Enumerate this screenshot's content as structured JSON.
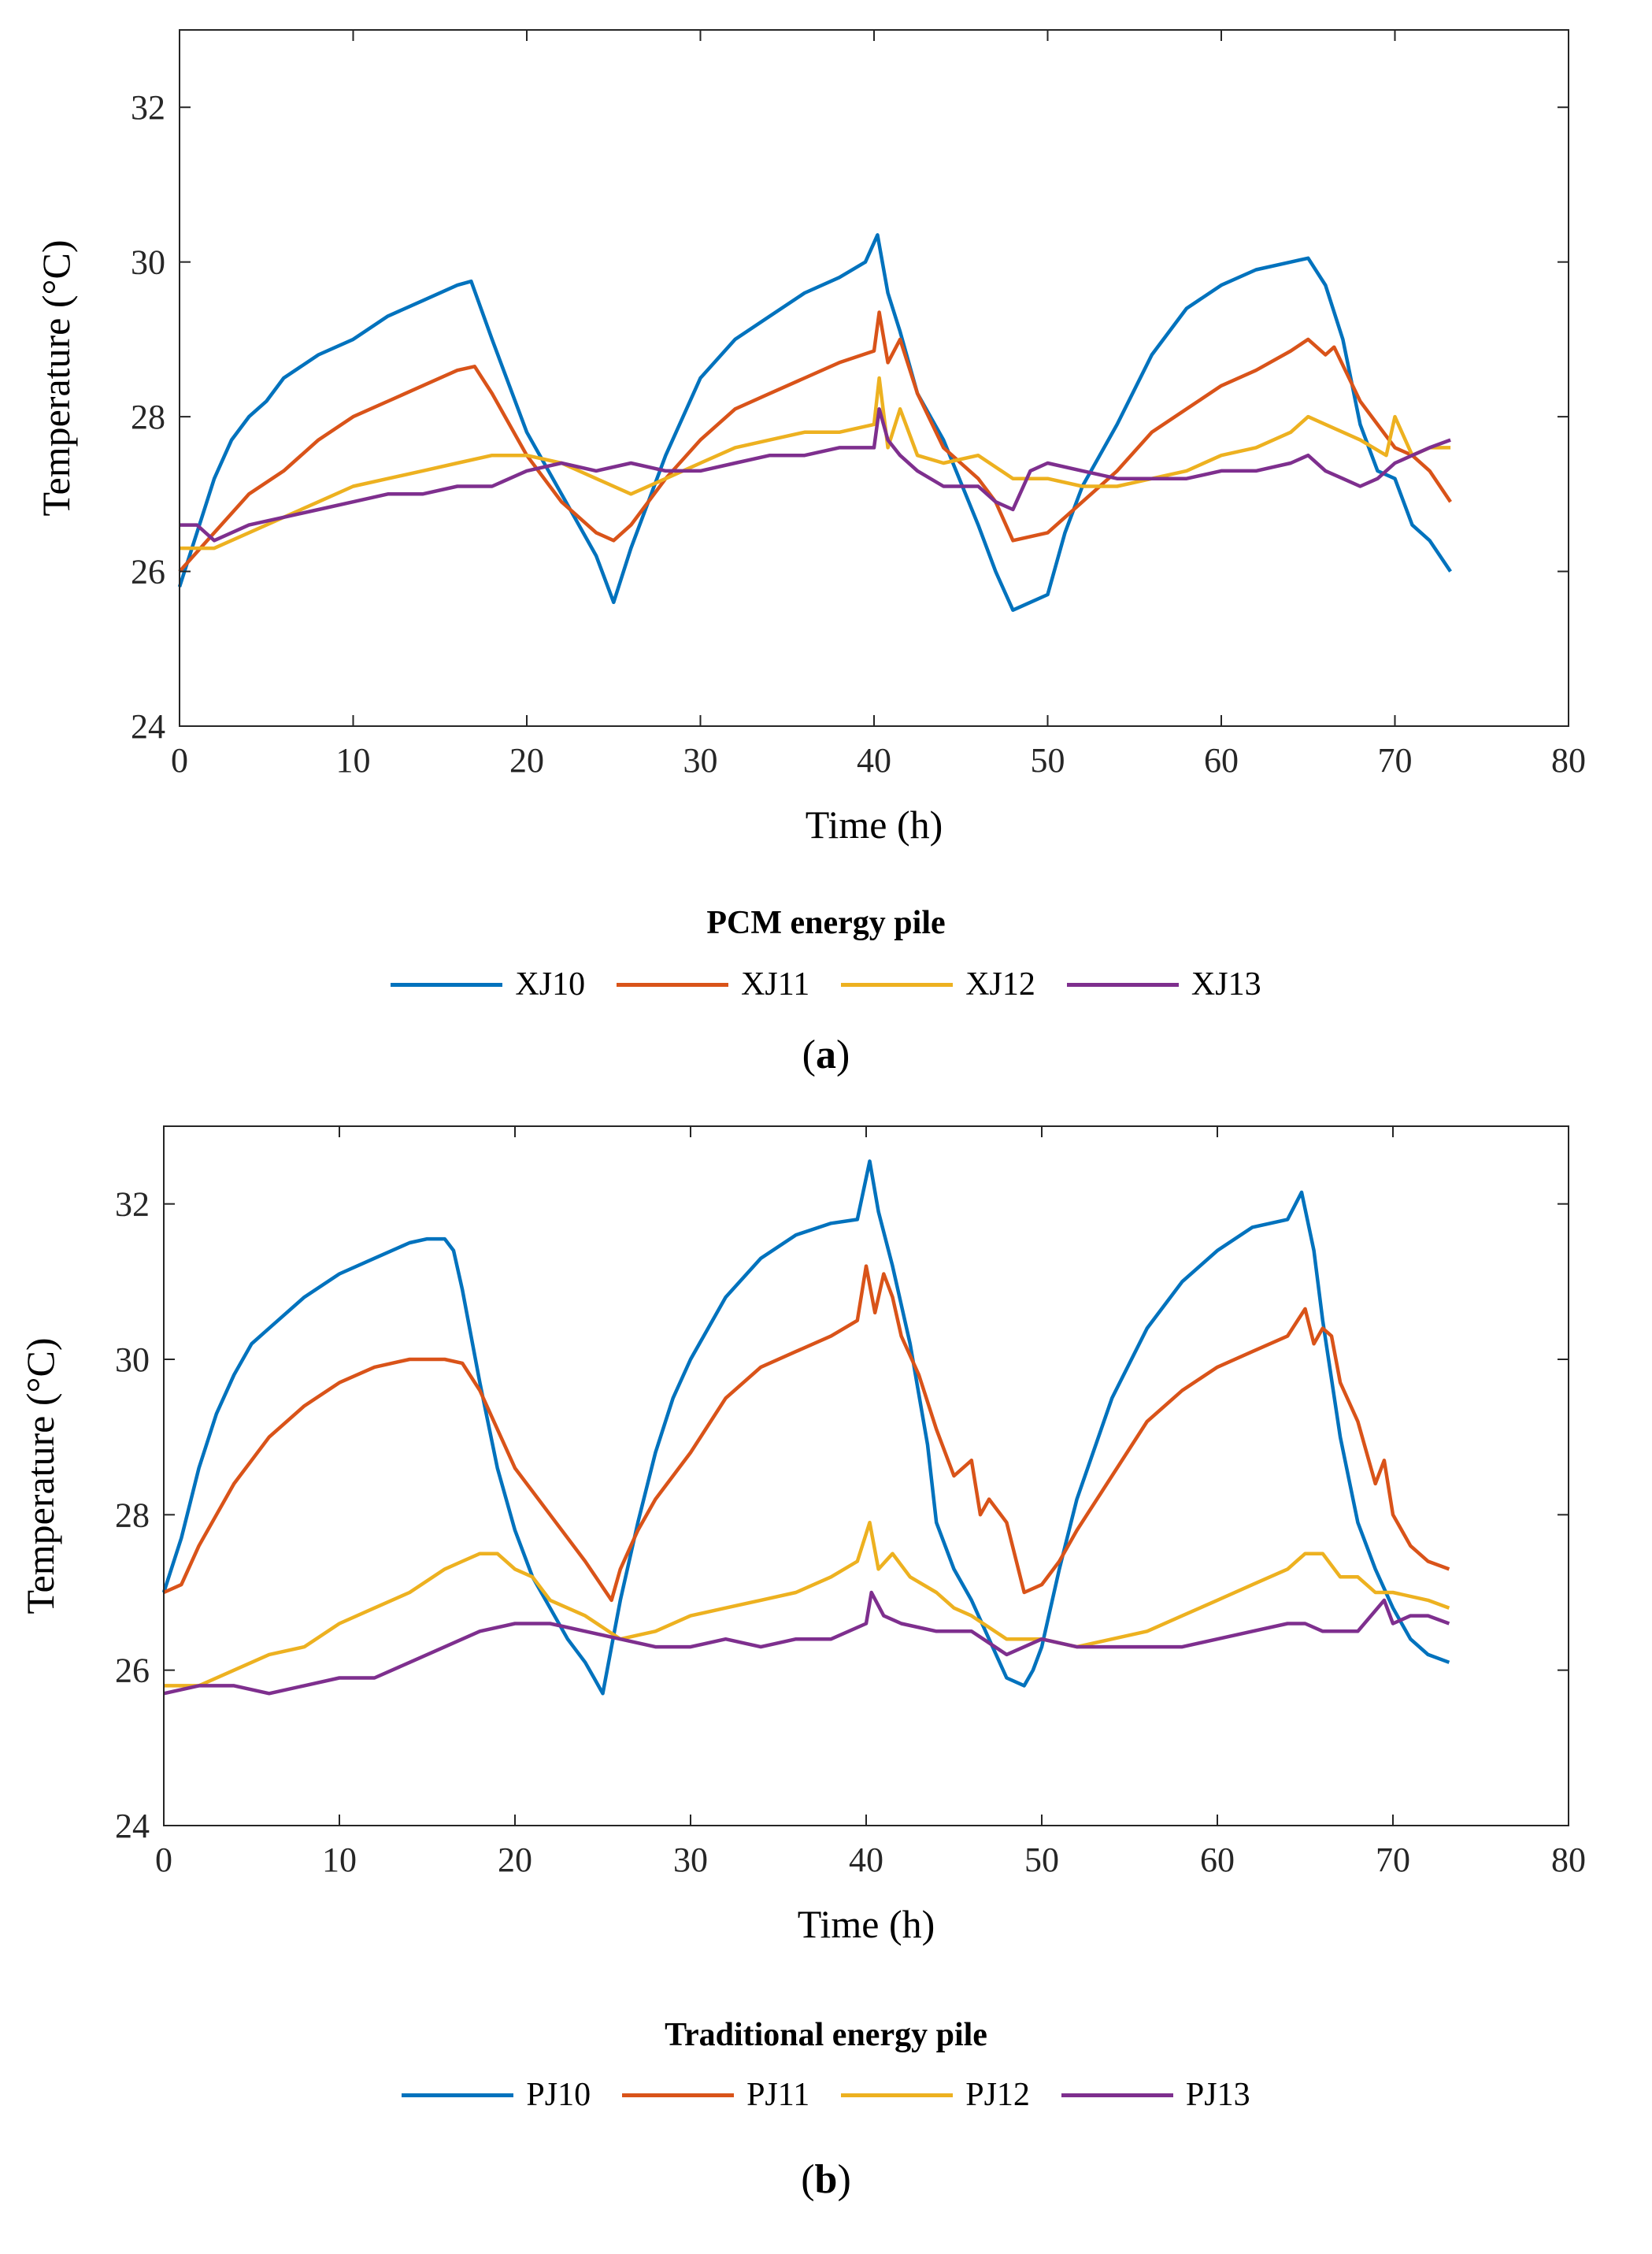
{
  "chart_data": [
    {
      "type": "line",
      "panel_label": "a",
      "xlabel": "Time (h)",
      "ylabel": "Temperature (°C)",
      "xlim": [
        0,
        80
      ],
      "ylim": [
        24,
        33
      ],
      "xticks": [
        0,
        10,
        20,
        30,
        40,
        50,
        60,
        70,
        80
      ],
      "yticks": [
        24,
        26,
        28,
        30,
        32
      ],
      "grid": false,
      "legend_title": "PCM energy pile",
      "legend_position": "bottom",
      "series": [
        {
          "name": "XJ10",
          "color": "#0072BD",
          "x": [
            0,
            1,
            2,
            3,
            4,
            5,
            6,
            8,
            10,
            12,
            14,
            16,
            16.8,
            18,
            20,
            22,
            24,
            25,
            26,
            28,
            30,
            32,
            34,
            36,
            38,
            39.5,
            40.2,
            40.8,
            41.5,
            42.5,
            44,
            46,
            47,
            48,
            49,
            50,
            51,
            52,
            54,
            56,
            58,
            60,
            62,
            64,
            65,
            66,
            67,
            68,
            69,
            70,
            71,
            72,
            73.2
          ],
          "y": [
            25.8,
            26.5,
            27.2,
            27.7,
            28.0,
            28.2,
            28.5,
            28.8,
            29.0,
            29.3,
            29.5,
            29.7,
            29.75,
            29.0,
            27.8,
            27.0,
            26.2,
            25.6,
            26.3,
            27.5,
            28.5,
            29.0,
            29.3,
            29.6,
            29.8,
            30.0,
            30.35,
            29.6,
            29.1,
            28.3,
            27.7,
            26.6,
            26.0,
            25.5,
            25.6,
            25.7,
            26.5,
            27.1,
            27.9,
            28.8,
            29.4,
            29.7,
            29.9,
            30.0,
            30.05,
            29.7,
            29.0,
            27.9,
            27.3,
            27.2,
            26.6,
            26.4,
            26.0
          ]
        },
        {
          "name": "XJ11",
          "color": "#D95319",
          "x": [
            0,
            2,
            4,
            6,
            8,
            10,
            12,
            14,
            16,
            17,
            18,
            20,
            22,
            24,
            25,
            26,
            28,
            30,
            32,
            34,
            36,
            38,
            40,
            40.3,
            40.8,
            41.5,
            42.5,
            44,
            46,
            47,
            48,
            50,
            52,
            54,
            56,
            58,
            60,
            62,
            64,
            65,
            66,
            66.5,
            68,
            70,
            71,
            72,
            73.2
          ],
          "y": [
            26.0,
            26.5,
            27.0,
            27.3,
            27.7,
            28.0,
            28.2,
            28.4,
            28.6,
            28.65,
            28.3,
            27.5,
            26.9,
            26.5,
            26.4,
            26.6,
            27.2,
            27.7,
            28.1,
            28.3,
            28.5,
            28.7,
            28.85,
            29.35,
            28.7,
            29.0,
            28.3,
            27.6,
            27.2,
            26.9,
            26.4,
            26.5,
            26.9,
            27.3,
            27.8,
            28.1,
            28.4,
            28.6,
            28.85,
            29.0,
            28.8,
            28.9,
            28.2,
            27.6,
            27.5,
            27.3,
            26.9
          ]
        },
        {
          "name": "XJ12",
          "color": "#EDB120",
          "x": [
            0,
            2,
            4,
            6,
            8,
            10,
            12,
            14,
            16,
            18,
            20,
            22,
            24,
            26,
            28,
            30,
            32,
            34,
            36,
            38,
            40,
            40.3,
            40.8,
            41.5,
            42.5,
            44,
            46,
            48,
            50,
            52,
            54,
            56,
            58,
            60,
            62,
            64,
            65,
            66,
            68,
            69.5,
            70,
            71,
            72,
            73.2
          ],
          "y": [
            26.3,
            26.3,
            26.5,
            26.7,
            26.9,
            27.1,
            27.2,
            27.3,
            27.4,
            27.5,
            27.5,
            27.4,
            27.2,
            27.0,
            27.2,
            27.4,
            27.6,
            27.7,
            27.8,
            27.8,
            27.9,
            28.5,
            27.6,
            28.1,
            27.5,
            27.4,
            27.5,
            27.2,
            27.2,
            27.1,
            27.1,
            27.2,
            27.3,
            27.5,
            27.6,
            27.8,
            28.0,
            27.9,
            27.7,
            27.5,
            28.0,
            27.5,
            27.6,
            27.6
          ]
        },
        {
          "name": "XJ13",
          "color": "#7E2F8E",
          "x": [
            0,
            1,
            2,
            4,
            6,
            8,
            10,
            12,
            14,
            16,
            18,
            20,
            22,
            24,
            26,
            28,
            30,
            32,
            34,
            36,
            38,
            40,
            40.3,
            40.8,
            41.5,
            42.5,
            44,
            46,
            47,
            48,
            49,
            50,
            52,
            54,
            56,
            58,
            60,
            62,
            64,
            65,
            66,
            67,
            68,
            69,
            70,
            71,
            72,
            73.2
          ],
          "y": [
            26.6,
            26.6,
            26.4,
            26.6,
            26.7,
            26.8,
            26.9,
            27.0,
            27.0,
            27.1,
            27.1,
            27.3,
            27.4,
            27.3,
            27.4,
            27.3,
            27.3,
            27.4,
            27.5,
            27.5,
            27.6,
            27.6,
            28.1,
            27.7,
            27.5,
            27.3,
            27.1,
            27.1,
            26.9,
            26.8,
            27.3,
            27.4,
            27.3,
            27.2,
            27.2,
            27.2,
            27.3,
            27.3,
            27.4,
            27.5,
            27.3,
            27.2,
            27.1,
            27.2,
            27.4,
            27.5,
            27.6,
            27.7
          ]
        }
      ]
    },
    {
      "type": "line",
      "panel_label": "b",
      "xlabel": "Time (h)",
      "ylabel": "Temperature (°C)",
      "xlim": [
        0,
        80
      ],
      "ylim": [
        24,
        33
      ],
      "xticks": [
        0,
        10,
        20,
        30,
        40,
        50,
        60,
        70,
        80
      ],
      "yticks": [
        24,
        26,
        28,
        30,
        32
      ],
      "grid": false,
      "legend_title": "Traditional energy pile",
      "legend_position": "bottom",
      "series": [
        {
          "name": "PJ10",
          "color": "#0072BD",
          "x": [
            0,
            1,
            2,
            3,
            4,
            5,
            6,
            8,
            10,
            12,
            14,
            15,
            16,
            16.5,
            17,
            18,
            19,
            20,
            21,
            22,
            23,
            24,
            24.5,
            25,
            25.5,
            26,
            27,
            28,
            29,
            30,
            32,
            34,
            36,
            38,
            39.5,
            40.2,
            40.7,
            41.5,
            42.5,
            43.5,
            44,
            45,
            46,
            47,
            48,
            49,
            49.5,
            50,
            51,
            52,
            54,
            56,
            58,
            60,
            62,
            64,
            64.8,
            65.5,
            66,
            67,
            68,
            69,
            70,
            71,
            72,
            73.2
          ],
          "y": [
            27.0,
            27.7,
            28.6,
            29.3,
            29.8,
            30.2,
            30.4,
            30.8,
            31.1,
            31.3,
            31.5,
            31.55,
            31.55,
            31.4,
            30.9,
            29.7,
            28.6,
            27.8,
            27.2,
            26.8,
            26.4,
            26.1,
            25.9,
            25.7,
            26.3,
            26.9,
            27.9,
            28.8,
            29.5,
            30.0,
            30.8,
            31.3,
            31.6,
            31.75,
            31.8,
            32.55,
            31.9,
            31.2,
            30.2,
            28.9,
            27.9,
            27.3,
            26.9,
            26.4,
            25.9,
            25.8,
            26.0,
            26.3,
            27.3,
            28.2,
            29.5,
            30.4,
            31.0,
            31.4,
            31.7,
            31.8,
            32.15,
            31.4,
            30.5,
            29.0,
            27.9,
            27.3,
            26.8,
            26.4,
            26.2,
            26.1
          ]
        },
        {
          "name": "PJ11",
          "color": "#D95319",
          "x": [
            0,
            1,
            2,
            3,
            4,
            5,
            6,
            8,
            10,
            12,
            14,
            16,
            17,
            18,
            19,
            20,
            22,
            24,
            25.5,
            26,
            27,
            28,
            30,
            32,
            34,
            36,
            38,
            39.5,
            40,
            40.5,
            41,
            41.5,
            42,
            43,
            44,
            45,
            46,
            46.5,
            47,
            48,
            49,
            50,
            51,
            52,
            54,
            56,
            58,
            60,
            62,
            64,
            65,
            65.5,
            66,
            66.5,
            67,
            68,
            69,
            69.5,
            70,
            71,
            72,
            73.2
          ],
          "y": [
            27.0,
            27.1,
            27.6,
            28.0,
            28.4,
            28.7,
            29.0,
            29.4,
            29.7,
            29.9,
            30.0,
            30.0,
            29.95,
            29.6,
            29.1,
            28.6,
            28.0,
            27.4,
            26.9,
            27.3,
            27.8,
            28.2,
            28.8,
            29.5,
            29.9,
            30.1,
            30.3,
            30.5,
            31.2,
            30.6,
            31.1,
            30.8,
            30.3,
            29.8,
            29.1,
            28.5,
            28.7,
            28.0,
            28.2,
            27.9,
            27.0,
            27.1,
            27.4,
            27.8,
            28.5,
            29.2,
            29.6,
            29.9,
            30.1,
            30.3,
            30.65,
            30.2,
            30.4,
            30.3,
            29.7,
            29.2,
            28.4,
            28.7,
            28.0,
            27.6,
            27.4,
            27.3
          ]
        },
        {
          "name": "PJ12",
          "color": "#EDB120",
          "x": [
            0,
            2,
            4,
            6,
            8,
            10,
            12,
            14,
            16,
            17,
            18,
            19,
            20,
            21,
            22,
            24,
            26,
            28,
            30,
            32,
            34,
            36,
            38,
            39.5,
            40.2,
            40.7,
            41.5,
            42.5,
            44,
            45,
            46,
            48,
            50,
            52,
            54,
            56,
            58,
            60,
            62,
            64,
            65,
            66,
            67,
            68,
            69,
            70,
            72,
            73.2
          ],
          "y": [
            25.8,
            25.8,
            26.0,
            26.2,
            26.3,
            26.6,
            26.8,
            27.0,
            27.3,
            27.4,
            27.5,
            27.5,
            27.3,
            27.2,
            26.9,
            26.7,
            26.4,
            26.5,
            26.7,
            26.8,
            26.9,
            27.0,
            27.2,
            27.4,
            27.9,
            27.3,
            27.5,
            27.2,
            27.0,
            26.8,
            26.7,
            26.4,
            26.4,
            26.3,
            26.4,
            26.5,
            26.7,
            26.9,
            27.1,
            27.3,
            27.5,
            27.5,
            27.2,
            27.2,
            27.0,
            27.0,
            26.9,
            26.8
          ]
        },
        {
          "name": "PJ13",
          "color": "#7E2F8E",
          "x": [
            0,
            2,
            4,
            6,
            8,
            10,
            12,
            14,
            16,
            18,
            20,
            22,
            24,
            26,
            28,
            30,
            32,
            34,
            36,
            38,
            40,
            40.3,
            41,
            42,
            44,
            46,
            48,
            50,
            52,
            54,
            56,
            58,
            60,
            62,
            64,
            65,
            66,
            68,
            69.5,
            70,
            71,
            72,
            73.2
          ],
          "y": [
            25.7,
            25.8,
            25.8,
            25.7,
            25.8,
            25.9,
            25.9,
            26.1,
            26.3,
            26.5,
            26.6,
            26.6,
            26.5,
            26.4,
            26.3,
            26.3,
            26.4,
            26.3,
            26.4,
            26.4,
            26.6,
            27.0,
            26.7,
            26.6,
            26.5,
            26.5,
            26.2,
            26.4,
            26.3,
            26.3,
            26.3,
            26.3,
            26.4,
            26.5,
            26.6,
            26.6,
            26.5,
            26.5,
            26.9,
            26.6,
            26.7,
            26.7,
            26.6
          ]
        }
      ]
    }
  ]
}
